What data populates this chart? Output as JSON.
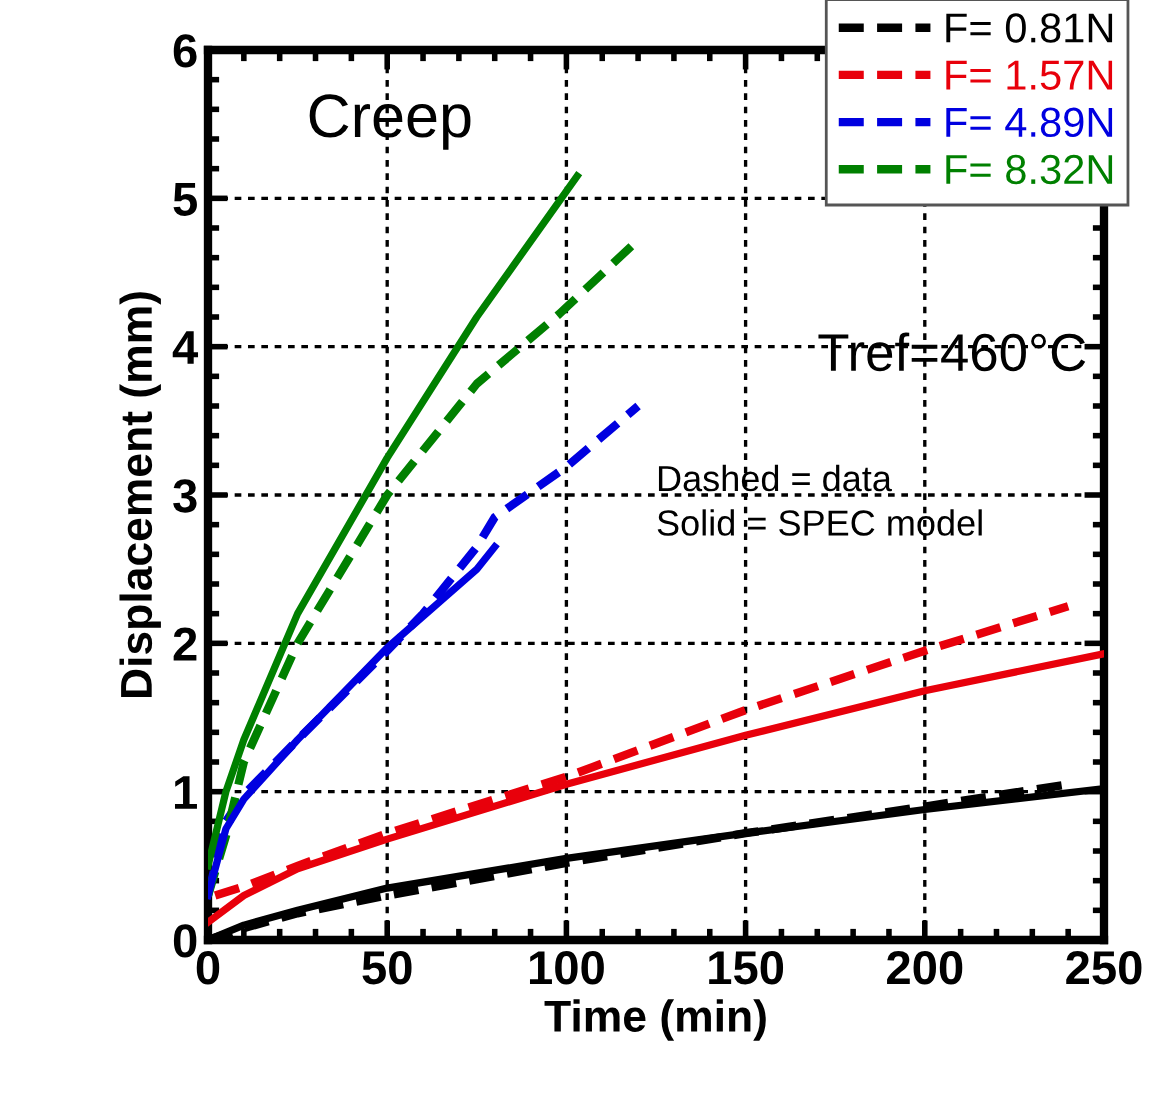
{
  "chart_data": {
    "type": "line",
    "xlabel": "Time (min)",
    "ylabel": "Displacement (mm)",
    "xlim": [
      0,
      250
    ],
    "ylim": [
      0,
      6
    ],
    "xticks": [
      0,
      50,
      100,
      150,
      200,
      250
    ],
    "yticks": [
      0,
      1,
      2,
      3,
      4,
      5,
      6
    ],
    "grid": true,
    "legend": "top right",
    "marker": "none",
    "annotations": [
      "Creep",
      "Tref=460°C",
      "Dashed = data",
      "Solid = SPEC model"
    ],
    "series": [
      {
        "name": "F= 0.81N",
        "color": "#000000",
        "line_style": "dashed",
        "x": [
          0,
          10,
          25,
          50,
          100,
          150,
          200,
          240
        ],
        "values": [
          0,
          0.08,
          0.18,
          0.3,
          0.52,
          0.72,
          0.9,
          1.05
        ]
      },
      {
        "name": "F= 1.57N",
        "color": "#e8000b",
        "line_style": "dashed",
        "x": [
          2,
          10,
          25,
          50,
          100,
          150,
          200,
          240
        ],
        "values": [
          0.3,
          0.36,
          0.5,
          0.72,
          1.1,
          1.55,
          1.95,
          2.25
        ]
      },
      {
        "name": "F= 4.89N",
        "color": "#0000e0",
        "line_style": "dashed",
        "x": [
          0,
          5,
          10,
          25,
          50,
          60,
          75,
          80,
          100,
          120
        ],
        "values": [
          0.3,
          0.8,
          0.98,
          1.35,
          1.95,
          2.2,
          2.65,
          2.85,
          3.19,
          3.6
        ]
      },
      {
        "name": "F= 8.32N",
        "color": "#008000",
        "line_style": "dashed",
        "x": [
          0,
          5,
          10,
          25,
          50,
          75,
          98,
          120
        ],
        "values": [
          0.3,
          0.7,
          1.2,
          2.0,
          3.0,
          3.75,
          4.22,
          4.72
        ]
      },
      {
        "color": "#000000",
        "line_style": "solid",
        "x": [
          0,
          10,
          25,
          50,
          100,
          150,
          200,
          250
        ],
        "values": [
          0,
          0.1,
          0.2,
          0.35,
          0.55,
          0.72,
          0.88,
          1.02
        ]
      },
      {
        "color": "#e8000b",
        "line_style": "solid",
        "x": [
          0,
          10,
          25,
          50,
          100,
          150,
          200,
          250
        ],
        "values": [
          0.12,
          0.3,
          0.48,
          0.68,
          1.05,
          1.38,
          1.68,
          1.93
        ]
      },
      {
        "color": "#0000e0",
        "line_style": "solid",
        "x": [
          0,
          5,
          10,
          25,
          50,
          75,
          80
        ],
        "values": [
          0.3,
          0.75,
          0.95,
          1.35,
          1.97,
          2.5,
          2.65
        ]
      },
      {
        "color": "#008000",
        "line_style": "solid",
        "x": [
          0,
          5,
          10,
          25,
          50,
          75,
          103
        ],
        "values": [
          0.5,
          1.0,
          1.35,
          2.2,
          3.25,
          4.2,
          5.15
        ]
      }
    ]
  }
}
